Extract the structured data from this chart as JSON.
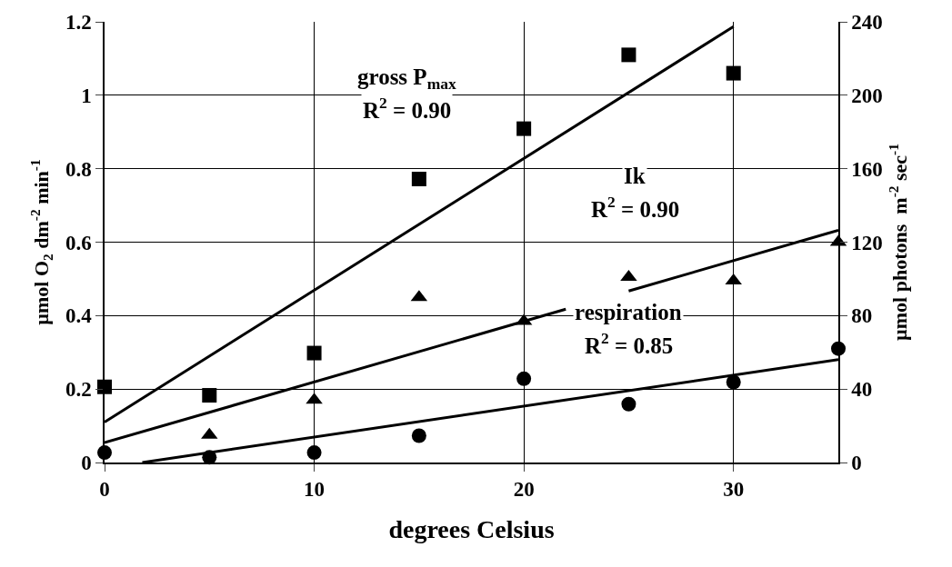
{
  "chart_data": {
    "type": "scatter",
    "xlabel": "degrees Celsius",
    "ylabel": "µmol O$_{2}$ dm$^{-2}$ min$^{-1}$",
    "y2label": "µmol photons  m$^{-2}$ sec$^{-1}$",
    "xlim": [
      0,
      35
    ],
    "xticks": [
      0,
      10,
      20,
      30
    ],
    "ylim": [
      0,
      1.2
    ],
    "yticks": [
      0,
      0.2,
      0.4,
      0.6,
      0.8,
      1,
      1.2
    ],
    "y2lim": [
      0,
      240
    ],
    "y2ticks": [
      0,
      40,
      80,
      120,
      160,
      200,
      240
    ],
    "grid": true,
    "series": [
      {
        "marker": "square",
        "color": "#000000",
        "x": [
          0,
          5,
          10,
          15,
          20,
          25,
          30
        ],
        "values": [
          0.206,
          0.183,
          0.298,
          0.772,
          0.909,
          1.11,
          1.06
        ]
      },
      {
        "marker": "triangle",
        "color": "#000000",
        "axis": "y2",
        "x": [
          5,
          10,
          15,
          20,
          25,
          30,
          35
        ],
        "values": [
          15,
          34,
          90,
          77,
          101,
          99,
          120
        ]
      },
      {
        "marker": "circle",
        "color": "#000000",
        "x": [
          0,
          5,
          10,
          15,
          20,
          25,
          30,
          35
        ],
        "values": [
          0.027,
          0.014,
          0.027,
          0.073,
          0.228,
          0.159,
          0.219,
          0.31
        ]
      },
      {
        "type": "line",
        "marker": "none",
        "color": "#000000",
        "x": [
          0,
          30
        ],
        "values": [
          0.11,
          1.187
        ]
      },
      {
        "type": "line",
        "marker": "none",
        "color": "#000000",
        "axis": "y2",
        "x": [
          0,
          22,
          23.5,
          25,
          35
        ],
        "values": [
          10.8,
          83.5,
          null,
          93.4,
          126.5
        ]
      },
      {
        "type": "line",
        "marker": "none",
        "color": "#000000",
        "x": [
          1.8,
          35
        ],
        "values": [
          0,
          0.28
        ]
      }
    ],
    "annotations": [
      "gross P$_{max}$",
      "R$^{2}$ = 0.90",
      "Ik",
      "R$^{2}$ = 0.90",
      "respiration",
      "R$^{2}$ = 0.85"
    ]
  }
}
